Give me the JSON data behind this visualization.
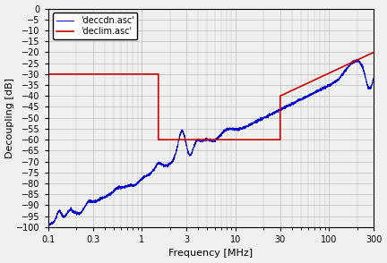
{
  "title": "",
  "xlabel": "Frequency [MHz]",
  "ylabel": "Decoupling [dB]",
  "xlim": [
    0.1,
    300
  ],
  "ylim": [
    -100,
    0
  ],
  "yticks": [
    0,
    -5,
    -10,
    -15,
    -20,
    -25,
    -30,
    -35,
    -40,
    -45,
    -50,
    -55,
    -60,
    -65,
    -70,
    -75,
    -80,
    -85,
    -90,
    -95,
    -100
  ],
  "bg_color": "#f0f0f0",
  "grid_color": "#bbbbbb",
  "blue_color": "#0000cc",
  "red_color": "#cc0000",
  "legend_labels": [
    "'deccdn.asc'",
    "'declim.asc'"
  ],
  "red_line": {
    "x": [
      0.1,
      1.5,
      1.5,
      30.0,
      30.0,
      300
    ],
    "y": [
      -30,
      -30,
      -60,
      -60,
      -40,
      -20
    ]
  },
  "major_xticks": [
    0.1,
    0.3,
    1,
    3,
    10,
    30,
    100,
    300
  ],
  "xtick_labels": {
    "0.1": "0.1",
    "0.3": "0.3",
    "1": "1",
    "3": "3",
    "10": "10",
    "30": "30",
    "100": "100",
    "300": "300"
  }
}
